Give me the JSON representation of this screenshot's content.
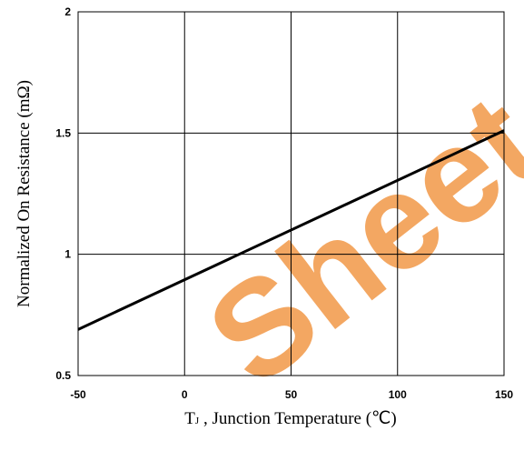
{
  "chart_data": {
    "type": "line",
    "xlabel": "T",
    "xlabel_subscript": "J",
    "xlabel_rest": " , Junction Temperature (℃)",
    "ylabel": "Normalized On Resistance (mΩ)",
    "xlim": [
      -50,
      150
    ],
    "ylim": [
      0.5,
      2
    ],
    "x_ticks": [
      -50,
      0,
      50,
      100,
      150
    ],
    "y_ticks": [
      0.5,
      1,
      1.5,
      2
    ],
    "x_tick_labels": [
      "-50",
      "0",
      "50",
      "100",
      "150"
    ],
    "y_tick_labels": [
      "0.5",
      "1",
      "1.5",
      "2"
    ],
    "grid": true,
    "series": [
      {
        "color": "#000000",
        "x": [
          -50,
          150
        ],
        "y": [
          0.69,
          1.51
        ]
      }
    ]
  },
  "watermark": {
    "text": "Sheet",
    "color": "#f08a2e"
  }
}
